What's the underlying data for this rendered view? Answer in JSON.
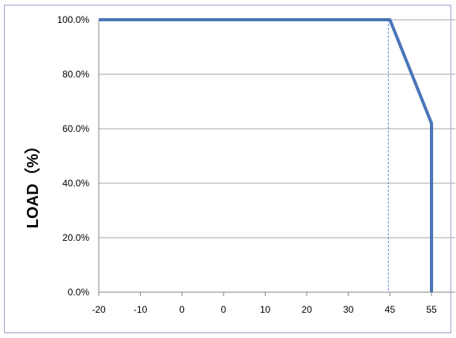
{
  "chart_data": {
    "type": "line",
    "title": "",
    "xlabel": "",
    "ylabel": "LOAD（%）",
    "x_tick_labels": [
      "-20",
      "-10",
      "0",
      "0",
      "10",
      "20",
      "30",
      "45",
      "55"
    ],
    "y_tick_labels": [
      "0.0%",
      "20.0%",
      "40.0%",
      "60.0%",
      "80.0%",
      "100.0%"
    ],
    "ylim": [
      0,
      100
    ],
    "grid": "horizontal",
    "series": [
      {
        "points": [
          {
            "x": "-20",
            "y": 100
          },
          {
            "x": "45",
            "y": 100
          },
          {
            "x": "55",
            "y": 62
          },
          {
            "x": "55",
            "y": 0
          }
        ]
      }
    ],
    "reference_lines": [
      {
        "x": "45",
        "style": "dashed"
      }
    ],
    "colors": {
      "line": "#4a76b8",
      "grid": "#a6a6a6",
      "reference": "#5b8fd0",
      "axis": "#868686"
    }
  }
}
